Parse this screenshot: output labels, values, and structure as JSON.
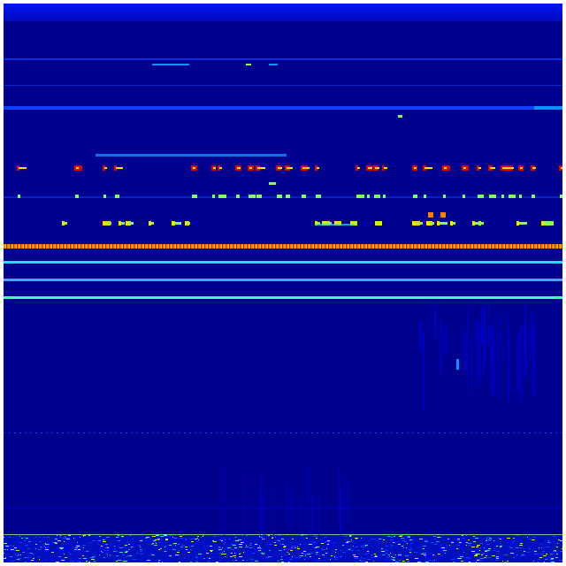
{
  "colormap": "jet",
  "colors": {
    "background": "#00008f",
    "low": "#0000d0",
    "blue": "#1040ff",
    "light_blue": "#1090ff",
    "cyan": "#20e0ff",
    "aquamarine": "#40ffc0",
    "green": "#80ff60",
    "yellow": "#ffe000",
    "orange": "#ff8000",
    "red": "#e00000"
  }
}
